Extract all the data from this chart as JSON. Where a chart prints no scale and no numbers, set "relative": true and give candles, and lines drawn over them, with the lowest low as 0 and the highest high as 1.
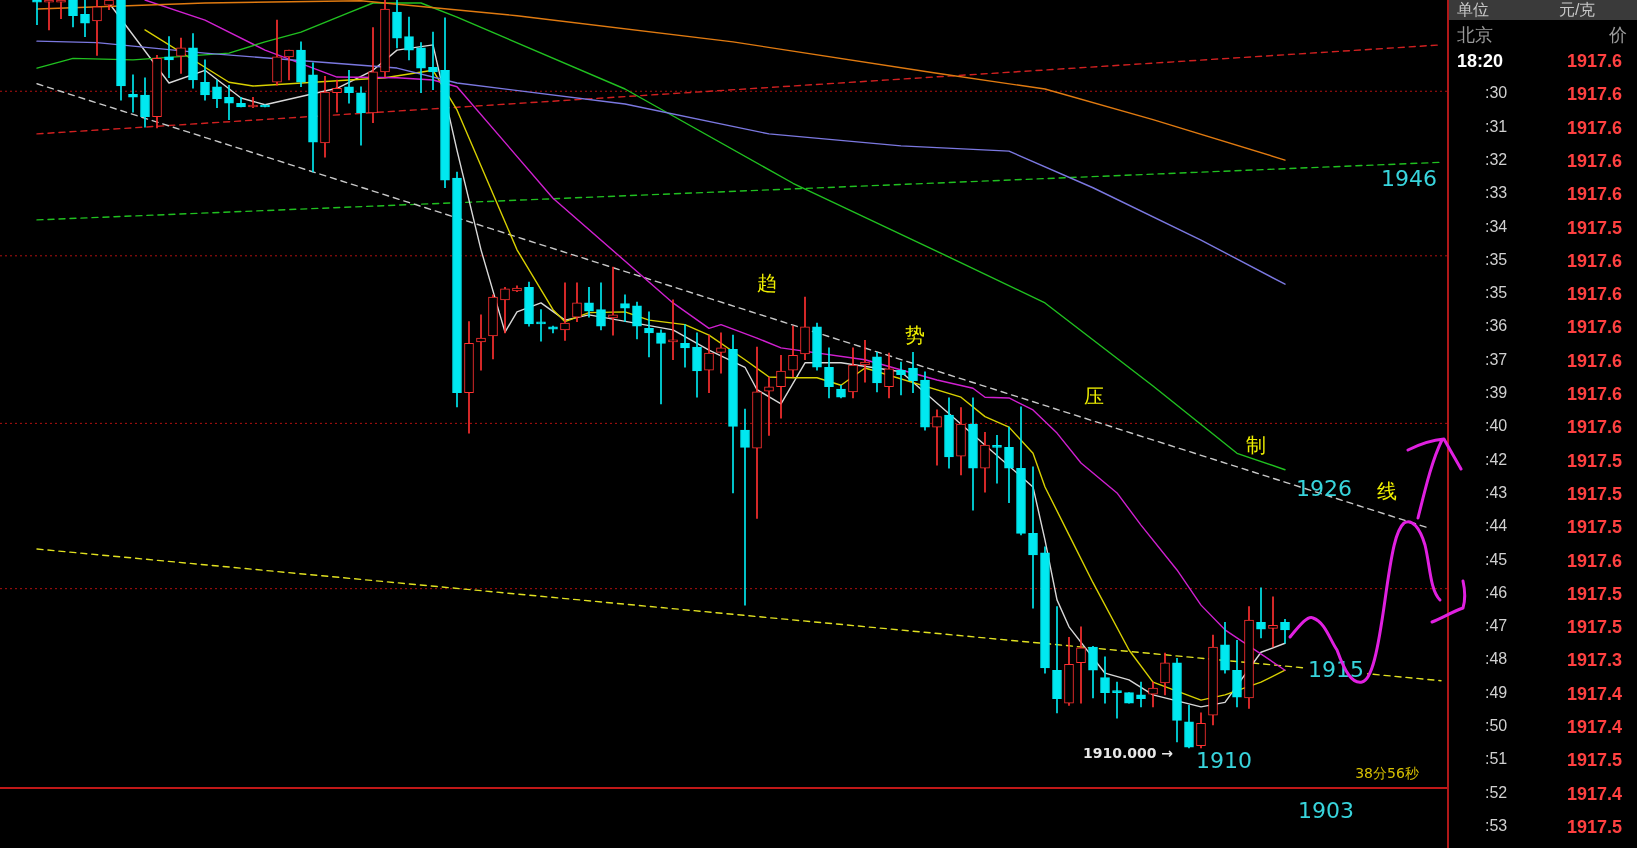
{
  "chart_data": [
    {
      "type": "candlestick",
      "relative": true,
      "tick_labels": false,
      "categories": [
        null,
        null,
        null,
        null,
        null,
        null,
        null,
        null,
        null,
        null,
        null,
        null,
        null,
        null,
        null,
        null,
        null,
        null,
        null,
        null,
        null,
        null,
        null,
        null,
        null,
        null,
        null,
        null,
        null,
        null,
        null,
        null,
        null,
        null,
        null,
        null,
        null,
        null,
        null,
        null,
        null,
        null,
        null,
        null,
        null,
        null,
        null,
        null,
        null,
        null,
        null,
        null,
        null,
        null,
        null,
        null,
        null,
        null,
        null,
        null,
        null,
        null,
        null,
        null,
        null,
        null,
        null,
        null,
        null,
        null,
        null,
        null,
        null,
        null,
        null,
        null,
        null,
        null,
        null,
        null,
        null,
        null,
        null,
        null,
        null,
        null,
        null,
        null,
        null,
        null,
        null,
        null,
        null,
        null,
        null,
        null,
        null,
        null,
        null,
        null,
        null,
        null,
        null,
        null,
        null,
        null,
        null,
        null,
        null,
        null,
        null,
        null,
        null,
        null,
        null,
        null,
        null,
        null
      ],
      "ohlc": [
        [
          1.0,
          1.0,
          0.967,
          0.997
        ],
        [
          0.997,
          1.0,
          0.96,
          1.0
        ],
        [
          0.997,
          1.0,
          0.975,
          1.0
        ],
        [
          1.0,
          1.0,
          0.964,
          0.979
        ],
        [
          0.981,
          1.0,
          0.951,
          0.969
        ],
        [
          0.972,
          1.0,
          0.926,
          0.991
        ],
        [
          0.993,
          1.0,
          0.987,
          1.0
        ],
        [
          1.0,
          1.0,
          0.866,
          0.885
        ],
        [
          0.874,
          0.9,
          0.85,
          0.87
        ],
        [
          0.873,
          0.896,
          0.83,
          0.844
        ],
        [
          0.844,
          0.926,
          0.829,
          0.922
        ],
        [
          0.924,
          0.951,
          0.896,
          0.92
        ],
        [
          0.925,
          0.949,
          0.902,
          0.936
        ],
        [
          0.936,
          0.955,
          0.882,
          0.893
        ],
        [
          0.89,
          0.92,
          0.866,
          0.873
        ],
        [
          0.884,
          0.893,
          0.856,
          0.868
        ],
        [
          0.87,
          0.886,
          0.84,
          0.862
        ],
        [
          0.862,
          0.87,
          0.857,
          0.857
        ],
        [
          0.857,
          0.87,
          0.856,
          0.858
        ],
        [
          0.858,
          0.86,
          0.857,
          0.857
        ],
        [
          0.89,
          0.973,
          0.886,
          0.924
        ],
        [
          0.924,
          0.933,
          0.893,
          0.933
        ],
        [
          0.933,
          0.944,
          0.884,
          0.89
        ],
        [
          0.9,
          0.916,
          0.77,
          0.81
        ],
        [
          0.809,
          0.898,
          0.79,
          0.877
        ],
        [
          0.876,
          0.893,
          0.85,
          0.882
        ],
        [
          0.884,
          0.906,
          0.862,
          0.876
        ],
        [
          0.876,
          0.884,
          0.806,
          0.849
        ],
        [
          0.849,
          0.963,
          0.836,
          0.904
        ],
        [
          0.904,
          1.0,
          0.897,
          0.988
        ],
        [
          0.984,
          1.0,
          0.936,
          0.949
        ],
        [
          0.951,
          0.977,
          0.92,
          0.933
        ],
        [
          0.936,
          0.943,
          0.876,
          0.909
        ],
        [
          0.91,
          0.957,
          0.88,
          0.904
        ],
        [
          0.906,
          0.976,
          0.749,
          0.759
        ],
        [
          0.762,
          0.77,
          0.456,
          0.475
        ],
        [
          0.475,
          0.57,
          0.421,
          0.541
        ],
        [
          0.543,
          0.579,
          0.505,
          0.548
        ],
        [
          0.551,
          0.606,
          0.52,
          0.603
        ],
        [
          0.599,
          0.616,
          0.555,
          0.614
        ],
        [
          0.611,
          0.618,
          0.61,
          0.615
        ],
        [
          0.616,
          0.623,
          0.564,
          0.567
        ],
        [
          0.568,
          0.586,
          0.544,
          0.567
        ],
        [
          0.563,
          0.564,
          0.555,
          0.56
        ],
        [
          0.559,
          0.622,
          0.545,
          0.568
        ],
        [
          0.576,
          0.622,
          0.57,
          0.595
        ],
        [
          0.595,
          0.616,
          0.576,
          0.584
        ],
        [
          0.586,
          0.622,
          0.559,
          0.564
        ],
        [
          0.575,
          0.643,
          0.552,
          0.579
        ],
        [
          0.594,
          0.606,
          0.57,
          0.588
        ],
        [
          0.591,
          0.596,
          0.547,
          0.564
        ],
        [
          0.561,
          0.583,
          0.523,
          0.555
        ],
        [
          0.555,
          0.559,
          0.46,
          0.541
        ],
        [
          0.543,
          0.599,
          0.519,
          0.545
        ],
        [
          0.541,
          0.566,
          0.509,
          0.535
        ],
        [
          0.536,
          0.555,
          0.469,
          0.504
        ],
        [
          0.505,
          0.552,
          0.475,
          0.528
        ],
        [
          0.529,
          0.555,
          0.501,
          0.535
        ],
        [
          0.533,
          0.552,
          0.341,
          0.43
        ],
        [
          0.425,
          0.453,
          0.191,
          0.402
        ],
        [
          0.401,
          0.536,
          0.307,
          0.476
        ],
        [
          0.477,
          0.496,
          0.418,
          0.483
        ],
        [
          0.483,
          0.525,
          0.441,
          0.504
        ],
        [
          0.505,
          0.564,
          0.496,
          0.525
        ],
        [
          0.527,
          0.603,
          0.519,
          0.563
        ],
        [
          0.563,
          0.568,
          0.505,
          0.509
        ],
        [
          0.509,
          0.535,
          0.468,
          0.483
        ],
        [
          0.48,
          0.485,
          0.468,
          0.469
        ],
        [
          0.476,
          0.535,
          0.468,
          0.512
        ],
        [
          0.512,
          0.545,
          0.489,
          0.516
        ],
        [
          0.523,
          0.529,
          0.476,
          0.488
        ],
        [
          0.483,
          0.528,
          0.468,
          0.507
        ],
        [
          0.505,
          0.516,
          0.472,
          0.499
        ],
        [
          0.508,
          0.529,
          0.475,
          0.491
        ],
        [
          0.492,
          0.503,
          0.425,
          0.429
        ],
        [
          0.429,
          0.452,
          0.378,
          0.443
        ],
        [
          0.445,
          0.468,
          0.374,
          0.389
        ],
        [
          0.39,
          0.455,
          0.365,
          0.433
        ],
        [
          0.433,
          0.468,
          0.318,
          0.374
        ],
        [
          0.374,
          0.422,
          0.342,
          0.405
        ],
        [
          0.404,
          0.418,
          0.354,
          0.402
        ],
        [
          0.402,
          0.429,
          0.328,
          0.374
        ],
        [
          0.374,
          0.456,
          0.285,
          0.287
        ],
        [
          0.287,
          0.376,
          0.187,
          0.258
        ],
        [
          0.261,
          0.269,
          0.1,
          0.107
        ],
        [
          0.104,
          0.189,
          0.047,
          0.066
        ],
        [
          0.06,
          0.148,
          0.057,
          0.112
        ],
        [
          0.114,
          0.162,
          0.06,
          0.134
        ],
        [
          0.135,
          0.136,
          0.067,
          0.104
        ],
        [
          0.094,
          0.122,
          0.06,
          0.074
        ],
        [
          0.075,
          0.088,
          0.04,
          0.074
        ],
        [
          0.074,
          0.074,
          0.06,
          0.06
        ],
        [
          0.071,
          0.088,
          0.055,
          0.066
        ],
        [
          0.072,
          0.088,
          0.055,
          0.08
        ],
        [
          0.087,
          0.127,
          0.071,
          0.114
        ],
        [
          0.114,
          0.12,
          0.008,
          0.037
        ],
        [
          0.035,
          0.057,
          0.0,
          0.001
        ],
        [
          0.003,
          0.047,
          0.0,
          0.033
        ],
        [
          0.044,
          0.151,
          0.031,
          0.135
        ],
        [
          0.138,
          0.168,
          0.1,
          0.104
        ],
        [
          0.104,
          0.144,
          0.055,
          0.068
        ],
        [
          0.067,
          0.189,
          0.053,
          0.171
        ],
        [
          0.168,
          0.214,
          0.147,
          0.159
        ],
        [
          0.16,
          0.202,
          0.135,
          0.164
        ],
        [
          0.168,
          0.172,
          0.14,
          0.158
        ],
        null,
        null,
        null,
        null,
        null,
        null,
        null,
        null,
        null,
        null,
        null,
        null,
        null
      ],
      "colors": [
        "#00e8f0",
        "#ff3030",
        "#ff3030",
        "#00e8f0",
        "#00e8f0",
        "#ff3030",
        "#ff3030",
        "#00e8f0",
        "#00e8f0",
        "#00e8f0",
        "#ff3030",
        "#00e8f0",
        "#ff3030",
        "#00e8f0",
        "#00e8f0",
        "#00e8f0",
        "#00e8f0",
        "#00e8f0",
        "#ff3030",
        "#00e8f0",
        "#ff3030",
        "#ff3030",
        "#00e8f0",
        "#00e8f0",
        "#ff3030",
        "#ff3030",
        "#00e8f0",
        "#00e8f0",
        "#ff3030",
        "#ff3030",
        "#00e8f0",
        "#00e8f0",
        "#00e8f0",
        "#00e8f0",
        "#00e8f0",
        "#00e8f0",
        "#ff3030",
        "#ff3030",
        "#ff3030",
        "#ff3030",
        "#ff3030",
        "#00e8f0",
        "#00e8f0",
        "#00e8f0",
        "#ff3030",
        "#ff3030",
        "#00e8f0",
        "#00e8f0",
        "#ff3030",
        "#00e8f0",
        "#00e8f0",
        "#00e8f0",
        "#00e8f0",
        "#ff3030",
        "#00e8f0",
        "#00e8f0",
        "#ff3030",
        "#ff3030",
        "#00e8f0",
        "#00e8f0",
        "#ff3030",
        "#ff3030",
        "#ff3030",
        "#ff3030",
        "#ff3030",
        "#00e8f0",
        "#00e8f0",
        "#00e8f0",
        "#ff3030",
        "#ff3030",
        "#00e8f0",
        "#ff3030",
        "#00e8f0",
        "#00e8f0",
        "#00e8f0",
        "#ff3030",
        "#00e8f0",
        "#ff3030",
        "#00e8f0",
        "#ff3030",
        "#00e8f0",
        "#00e8f0",
        "#00e8f0",
        "#00e8f0",
        "#00e8f0",
        "#00e8f0",
        "#ff3030",
        "#ff3030",
        "#00e8f0",
        "#00e8f0",
        "#00e8f0",
        "#00e8f0",
        "#00e8f0",
        "#ff3030",
        "#ff3030",
        "#00e8f0",
        "#00e8f0",
        "#ff3030",
        "#ff3030",
        "#00e8f0",
        "#00e8f0",
        "#ff3030",
        "#00e8f0",
        "#ff3030",
        "#00e8f0",
        null,
        null,
        null,
        null,
        null,
        null,
        null,
        null,
        null,
        null,
        null,
        null,
        null
      ],
      "series": [
        {
          "type": "line",
          "color": "#e07a10",
          "values": [
            0.988,
            null,
            null,
            null,
            null,
            null,
            null,
            null,
            null,
            null,
            null,
            null,
            null,
            null,
            0.996,
            null,
            null,
            null,
            null,
            null,
            null,
            null,
            null,
            null,
            null,
            null,
            null,
            0.999,
            null,
            null,
            null,
            null,
            null,
            null,
            null,
            null,
            null,
            null,
            null,
            null,
            0.979,
            null,
            null,
            null,
            null,
            null,
            null,
            null,
            null,
            null,
            null,
            null,
            null,
            null,
            null,
            null,
            null,
            null,
            0.944,
            null,
            null,
            null,
            null,
            null,
            null,
            null,
            null,
            null,
            null,
            null,
            null,
            null,
            null,
            null,
            null,
            0.902,
            null,
            null,
            null,
            null,
            null,
            null,
            null,
            null,
            0.881,
            null,
            null,
            null,
            null,
            null,
            null,
            null,
            null,
            0.84,
            null,
            null,
            null,
            null,
            null,
            null,
            null,
            null,
            null,
            null,
            0.786,
            null,
            null,
            null,
            null,
            null,
            null,
            null,
            null,
            null,
            null,
            null,
            null,
            null
          ]
        },
        {
          "type": "line",
          "color": "#7b78e0",
          "values": [
            0.945,
            null,
            null,
            null,
            null,
            0.943,
            null,
            null,
            null,
            null,
            null,
            null,
            null,
            null,
            0.929,
            null,
            null,
            null,
            null,
            null,
            null,
            null,
            null,
            null,
            null,
            null,
            null,
            null,
            null,
            null,
            0.909,
            null,
            null,
            null,
            null,
            0.889,
            null,
            null,
            null,
            null,
            null,
            null,
            null,
            null,
            null,
            null,
            null,
            null,
            null,
            0.861,
            null,
            null,
            null,
            null,
            null,
            null,
            null,
            null,
            null,
            null,
            null,
            0.821,
            null,
            null,
            null,
            null,
            null,
            null,
            null,
            null,
            null,
            null,
            0.805,
            null,
            null,
            null,
            null,
            null,
            null,
            null,
            null,
            0.798,
            null,
            null,
            null,
            null,
            null,
            null,
            0.749,
            null,
            null,
            null,
            null,
            null,
            null,
            null,
            null,
            0.679,
            null,
            null,
            null,
            null,
            null,
            null,
            0.62,
            null,
            null,
            null,
            null,
            null,
            null,
            null,
            null,
            null,
            null,
            null,
            null,
            null
          ]
        },
        {
          "type": "line",
          "color": "#20c020",
          "values": [
            0.909,
            null,
            null,
            0.922,
            null,
            null,
            null,
            null,
            0.92,
            null,
            null,
            null,
            null,
            null,
            null,
            null,
            0.929,
            null,
            null,
            0.944,
            null,
            null,
            0.957,
            null,
            null,
            null,
            0.983,
            null,
            0.996,
            null,
            null,
            null,
            0.996,
            null,
            null,
            0.977,
            null,
            null,
            null,
            null,
            null,
            null,
            null,
            null,
            null,
            null,
            null,
            null,
            null,
            0.881,
            null,
            null,
            null,
            null,
            null,
            null,
            null,
            null,
            null,
            null,
            null,
            null,
            null,
            0.755,
            null,
            null,
            null,
            null,
            null,
            null,
            null,
            null,
            null,
            null,
            null,
            0.664,
            null,
            null,
            null,
            null,
            null,
            null,
            null,
            null,
            0.595,
            null,
            null,
            null,
            null,
            null,
            null,
            null,
            null,
            0.484,
            null,
            null,
            null,
            null,
            null,
            null,
            0.394,
            null,
            null,
            null,
            0.372,
            null,
            null,
            null,
            null,
            null,
            null,
            null,
            null,
            null,
            null,
            null,
            null,
            null
          ]
        },
        {
          "type": "line",
          "color": "#d020d0",
          "values": [
            null,
            null,
            null,
            null,
            null,
            null,
            null,
            null,
            null,
            1.0,
            null,
            null,
            null,
            null,
            0.973,
            null,
            null,
            null,
            null,
            0.933,
            null,
            null,
            null,
            null,
            null,
            0.897,
            null,
            null,
            null,
            null,
            0.896,
            null,
            null,
            0.893,
            null,
            0.884,
            null,
            null,
            null,
            null,
            null,
            null,
            null,
            0.735,
            null,
            null,
            null,
            null,
            null,
            null,
            null,
            null,
            null,
            0.595,
            null,
            null,
            0.561,
            0.566,
            null,
            null,
            0.548,
            null,
            0.535,
            null,
            null,
            null,
            null,
            null,
            null,
            0.519,
            null,
            null,
            null,
            null,
            null,
            0.492,
            null,
            null,
            0.481,
            0.469,
            null,
            0.468,
            null,
            0.452,
            null,
            0.421,
            null,
            0.381,
            null,
            null,
            0.341,
            null,
            0.298,
            null,
            null,
            0.238,
            null,
            0.191,
            null,
            0.158,
            null,
            null,
            null,
            null,
            0.104,
            null,
            null,
            null,
            null,
            null,
            null,
            null,
            null,
            null,
            null,
            null,
            null,
            null
          ]
        },
        {
          "type": "line",
          "color": "#d8d000",
          "values": [
            null,
            null,
            null,
            null,
            null,
            null,
            null,
            null,
            null,
            0.96,
            null,
            null,
            null,
            null,
            null,
            null,
            0.89,
            null,
            0.885,
            null,
            null,
            null,
            null,
            null,
            null,
            null,
            null,
            null,
            null,
            0.896,
            null,
            null,
            null,
            0.906,
            null,
            0.853,
            null,
            null,
            null,
            null,
            0.666,
            null,
            null,
            0.586,
            0.57,
            null,
            0.582,
            null,
            null,
            0.583,
            null,
            0.572,
            null,
            null,
            0.566,
            null,
            0.552,
            null,
            null,
            0.519,
            null,
            0.496,
            null,
            0.495,
            null,
            0.495,
            null,
            0.485,
            null,
            0.508,
            null,
            null,
            null,
            null,
            null,
            null,
            null,
            0.469,
            null,
            0.443,
            null,
            0.429,
            null,
            0.394,
            0.349,
            null,
            0.285,
            null,
            0.221,
            null,
            null,
            0.131,
            null,
            0.088,
            null,
            null,
            null,
            0.064,
            null,
            0.071,
            null,
            null,
            0.088,
            null,
            0.104,
            null,
            null,
            null,
            null,
            null,
            null,
            null,
            null,
            null,
            null,
            null,
            null,
            null
          ]
        },
        {
          "type": "line",
          "color": "#d8d8d8",
          "values": [
            null,
            null,
            null,
            null,
            null,
            null,
            0.996,
            null,
            null,
            null,
            null,
            0.889,
            null,
            null,
            0.906,
            null,
            null,
            0.869,
            null,
            0.86,
            null,
            null,
            null,
            null,
            null,
            0.882,
            null,
            null,
            0.906,
            null,
            0.933,
            null,
            null,
            0.94,
            null,
            0.799,
            null,
            0.666,
            null,
            0.556,
            0.583,
            null,
            0.595,
            null,
            0.572,
            null,
            0.579,
            null,
            null,
            null,
            null,
            null,
            null,
            0.559,
            null,
            null,
            0.532,
            null,
            null,
            0.509,
            0.479,
            null,
            0.46,
            null,
            0.515,
            null,
            null,
            0.515,
            null,
            null,
            null,
            null,
            0.503,
            null,
            null,
            null,
            null,
            null,
            null,
            null,
            null,
            null,
            null,
            0.349,
            0.278,
            0.198,
            0.162,
            null,
            null,
            0.1,
            null,
            0.091,
            null,
            0.071,
            null,
            null,
            null,
            0.055,
            null,
            0.061,
            null,
            null,
            0.128,
            null,
            0.14,
            null,
            null,
            null,
            null,
            null,
            null,
            null,
            null,
            null,
            null,
            null,
            null,
            null
          ]
        },
        {
          "type": "line",
          "color": "#c8c8c8",
          "line_style": "dashed",
          "values": [
            0.888,
            null,
            null,
            null,
            null,
            null,
            null,
            null,
            null,
            null,
            null,
            null,
            null,
            null,
            null,
            null,
            null,
            null,
            null,
            null,
            null,
            null,
            null,
            null,
            null,
            null,
            null,
            null,
            null,
            null,
            null,
            null,
            null,
            null,
            null,
            null,
            null,
            null,
            null,
            null,
            null,
            null,
            null,
            null,
            null,
            null,
            null,
            null,
            null,
            null,
            null,
            null,
            null,
            null,
            null,
            null,
            null,
            null,
            null,
            null,
            null,
            null,
            null,
            null,
            null,
            null,
            null,
            null,
            null,
            null,
            null,
            null,
            null,
            null,
            null,
            null,
            null,
            null,
            null,
            null,
            null,
            null,
            null,
            null,
            null,
            null,
            null,
            null,
            null,
            null,
            null,
            null,
            null,
            null,
            null,
            null,
            null,
            null,
            null,
            null,
            null,
            null,
            null,
            null,
            null,
            null,
            null,
            null,
            null,
            null,
            null,
            null,
            null,
            null,
            null,
            null,
            0.294,
            null
          ]
        },
        {
          "type": "line",
          "color": "#d02020",
          "line_style": "dashed",
          "values": [
            0.821,
            null,
            null,
            null,
            null,
            null,
            null,
            null,
            null,
            null,
            null,
            null,
            null,
            null,
            null,
            null,
            null,
            null,
            null,
            null,
            null,
            null,
            null,
            null,
            null,
            null,
            null,
            null,
            null,
            null,
            null,
            null,
            null,
            null,
            null,
            null,
            null,
            null,
            null,
            null,
            null,
            null,
            null,
            null,
            null,
            null,
            null,
            null,
            null,
            null,
            null,
            null,
            null,
            null,
            null,
            null,
            null,
            null,
            null,
            null,
            null,
            null,
            null,
            null,
            null,
            null,
            null,
            null,
            null,
            null,
            null,
            null,
            null,
            null,
            null,
            null,
            null,
            null,
            null,
            null,
            null,
            null,
            null,
            null,
            null,
            null,
            null,
            null,
            null,
            null,
            null,
            null,
            null,
            null,
            null,
            null,
            null,
            null,
            null,
            null,
            null,
            null,
            null,
            null,
            null,
            null,
            null,
            null,
            null,
            null,
            null,
            null,
            null,
            null,
            null,
            null,
            null,
            0.94
          ]
        },
        {
          "type": "line",
          "color": "#20c020",
          "line_style": "dashed",
          "values": [
            0.706,
            null,
            null,
            null,
            null,
            null,
            null,
            null,
            null,
            null,
            null,
            null,
            null,
            null,
            null,
            null,
            null,
            null,
            null,
            null,
            null,
            null,
            null,
            null,
            null,
            null,
            null,
            null,
            null,
            null,
            null,
            null,
            null,
            null,
            null,
            null,
            null,
            null,
            null,
            null,
            null,
            null,
            null,
            null,
            null,
            null,
            null,
            null,
            null,
            null,
            null,
            null,
            null,
            null,
            null,
            null,
            null,
            null,
            null,
            null,
            null,
            null,
            null,
            null,
            null,
            null,
            null,
            null,
            null,
            null,
            null,
            null,
            null,
            null,
            null,
            null,
            null,
            null,
            null,
            null,
            null,
            null,
            null,
            null,
            null,
            null,
            null,
            null,
            null,
            null,
            null,
            null,
            null,
            null,
            null,
            null,
            null,
            null,
            null,
            null,
            null,
            null,
            null,
            null,
            null,
            null,
            null,
            null,
            null,
            null,
            null,
            null,
            null,
            null,
            null,
            null,
            null,
            0.783
          ]
        },
        {
          "type": "line",
          "color": "#e0e020",
          "line_style": "dashed",
          "values": [
            0.266,
            null,
            null,
            null,
            null,
            null,
            null,
            null,
            null,
            null,
            null,
            null,
            null,
            null,
            null,
            null,
            null,
            null,
            null,
            null,
            null,
            null,
            null,
            null,
            null,
            null,
            null,
            null,
            null,
            null,
            null,
            null,
            null,
            null,
            null,
            null,
            null,
            null,
            null,
            null,
            null,
            null,
            null,
            null,
            null,
            null,
            null,
            null,
            null,
            null,
            null,
            null,
            null,
            null,
            null,
            null,
            null,
            null,
            null,
            null,
            null,
            null,
            null,
            null,
            null,
            null,
            null,
            null,
            null,
            null,
            null,
            null,
            null,
            null,
            null,
            null,
            null,
            null,
            null,
            null,
            null,
            null,
            null,
            null,
            null,
            null,
            null,
            null,
            null,
            null,
            null,
            null,
            null,
            null,
            null,
            null,
            null,
            null,
            null,
            null,
            null,
            null,
            null,
            null,
            null,
            null,
            null,
            null,
            null,
            null,
            null,
            null,
            null,
            null,
            null,
            null,
            null,
            0.09
          ]
        }
      ],
      "ref_lines": [
        {
          "axis": "y",
          "value": 0.878,
          "color": "#b01010",
          "line_style": "dotted"
        },
        {
          "axis": "y",
          "value": 0.658,
          "color": "#b01010",
          "line_style": "dotted"
        },
        {
          "axis": "y",
          "value": 0.434,
          "color": "#b01010",
          "line_style": "dotted"
        },
        {
          "axis": "y",
          "value": 0.213,
          "color": "#b01010",
          "line_style": "dotted"
        }
      ],
      "annotations": [
        "1946",
        "1926",
        "1915",
        "1910",
        "1903",
        "1910.000 →",
        "趋",
        "势",
        "压",
        "制",
        "线",
        "38分56秒"
      ]
    },
    {
      "type": "other",
      "annotations": [
        "单位",
        "元/克",
        "北京",
        "价",
        "18:20",
        "1917.6",
        ":30",
        "1917.6",
        ":31",
        "1917.6",
        ":32",
        "1917.6",
        ":33",
        "1917.6",
        ":34",
        "1917.5",
        ":35",
        "1917.6",
        ":35",
        "1917.6",
        ":36",
        "1917.6",
        ":37",
        "1917.6",
        ":39",
        "1917.6",
        ":40",
        "1917.6",
        ":42",
        "1917.5",
        ":43",
        "1917.5",
        ":44",
        "1917.5",
        ":45",
        "1917.6",
        ":46",
        "1917.5",
        ":47",
        "1917.5",
        ":48",
        "1917.3",
        ":49",
        "1917.4",
        ":50",
        "1917.4",
        ":51",
        "1917.5",
        ":52",
        "1917.4",
        ":53",
        "1917.5"
      ]
    }
  ]
}
